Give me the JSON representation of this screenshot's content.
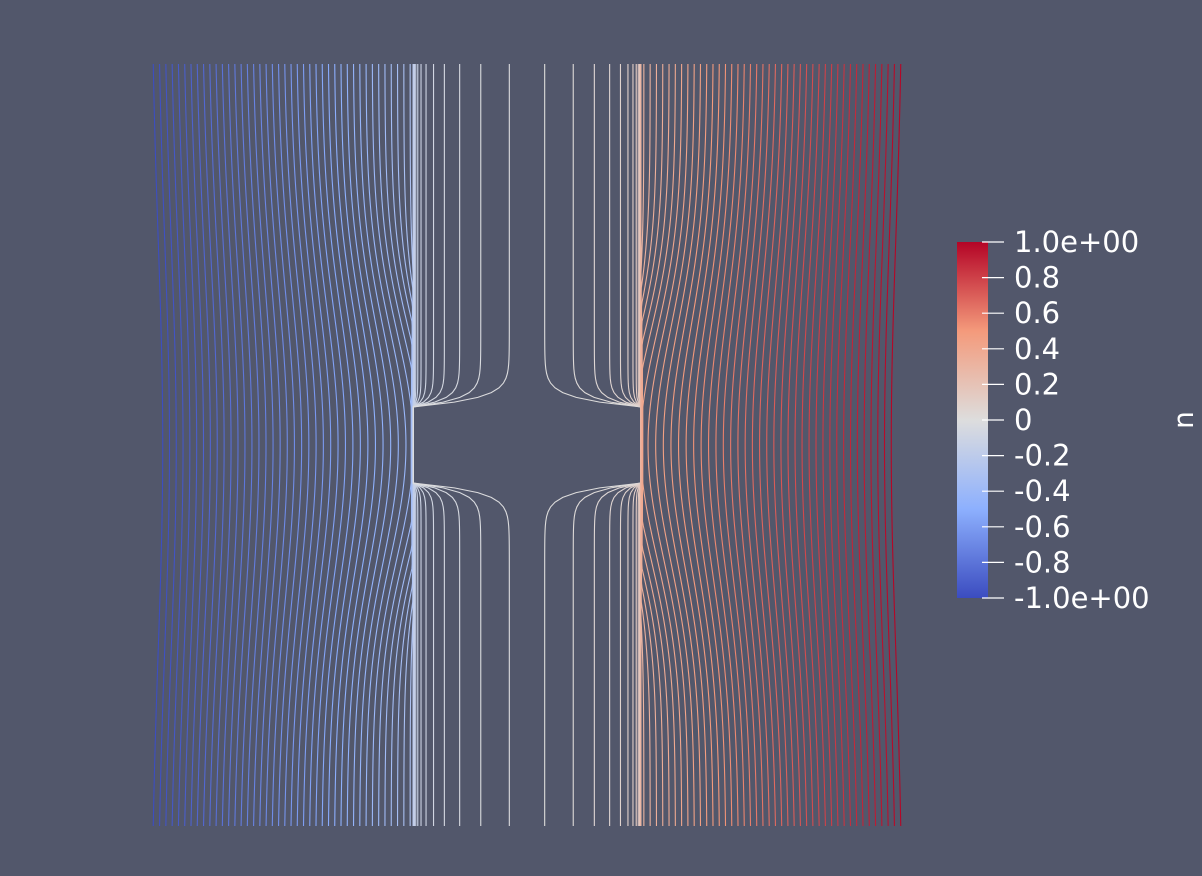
{
  "background_color": "#52576b",
  "field": {
    "variable": "u",
    "range": [
      -1.0,
      1.0
    ],
    "contour_count": 120,
    "domain": {
      "x": [
        -1.0,
        1.0
      ],
      "y": [
        -1.0,
        1.0
      ]
    },
    "hole": {
      "x": [
        -0.3,
        0.3
      ],
      "y": [
        -0.1,
        0.1
      ]
    }
  },
  "colorbar": {
    "title": "u",
    "tick_labels": [
      "1.0e+00",
      "0.8",
      "0.6",
      "0.4",
      "0.2",
      "0",
      "-0.2",
      "-0.4",
      "-0.6",
      "-0.8",
      "-1.0e+00"
    ],
    "tick_values": [
      1.0,
      0.8,
      0.6,
      0.4,
      0.2,
      0.0,
      -0.2,
      -0.4,
      -0.6,
      -0.8,
      -1.0
    ],
    "colormap": "Cool to Warm",
    "color_stops": [
      {
        "value": -1.0,
        "color": "#3b4cc0"
      },
      {
        "value": -0.5,
        "color": "#8db0fe"
      },
      {
        "value": 0.0,
        "color": "#dddddd"
      },
      {
        "value": 0.5,
        "color": "#f49a7b"
      },
      {
        "value": 1.0,
        "color": "#b40426"
      }
    ]
  }
}
